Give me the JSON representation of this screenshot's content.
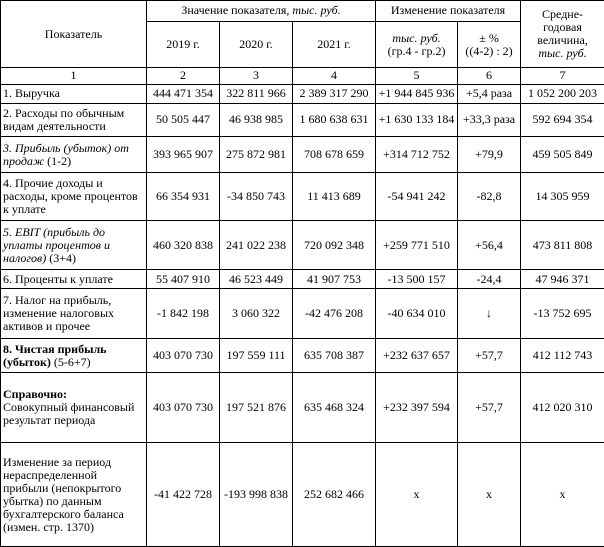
{
  "header": {
    "indicator": "Показатель",
    "values_group_prefix": "Значение показателя, ",
    "values_group_unit": "тыс. руб.",
    "change_group": "Изменение показателя",
    "avg_line1": "Средне-",
    "avg_line2": "годовая",
    "avg_line3": "величина,",
    "avg_unit": "тыс. руб.",
    "y2019": "2019 г.",
    "y2020": "2020 г.",
    "y2021": "2021 г.",
    "chg_abs_unit": "тыс. руб.",
    "chg_abs_formula": "(гр.4 - гр.2)",
    "chg_pct_unit": "± %",
    "chg_pct_formula": "((4-2) : 2)",
    "col_nums": [
      "1",
      "2",
      "3",
      "4",
      "5",
      "6",
      "7"
    ]
  },
  "rows": [
    {
      "label": "1. Выручка",
      "v2019": "444 471 354",
      "v2020": "322 811 966",
      "v2021": "2 389 317 290",
      "chg_abs": "+1 944 845 936",
      "chg_pct": "+5,4 раза",
      "avg": "1 052 200 203"
    },
    {
      "label": "2. Расходы по обычным видам деятельности",
      "v2019": "50 505 447",
      "v2020": "46 938 985",
      "v2021": "1 680 638 631",
      "chg_abs": "+1 630 133 184",
      "chg_pct": "+33,3 раза",
      "avg": "592 694 354"
    },
    {
      "label_italic": "3. Прибыль (убыток) от продаж",
      "label_suffix": " (1-2)",
      "v2019": "393 965 907",
      "v2020": "275 872 981",
      "v2021": "708 678 659",
      "chg_abs": "+314 712 752",
      "chg_pct": "+79,9",
      "avg": "459 505 849"
    },
    {
      "label": "4. Прочие доходы и расходы, кроме процентов к уплате",
      "v2019": "66 354 931",
      "v2020": "-34 850 743",
      "v2021": "11 413 689",
      "chg_abs": "-54 941 242",
      "chg_pct": "-82,8",
      "avg": "14 305 959"
    },
    {
      "label_italic": "5. EBIT (прибыль до уплаты процентов и налогов)",
      "label_suffix": " (3+4)",
      "v2019": "460 320 838",
      "v2020": "241 022 238",
      "v2021": "720 092 348",
      "chg_abs": "+259 771 510",
      "chg_pct": "+56,4",
      "avg": "473 811 808"
    },
    {
      "label": "6. Проценты к уплате",
      "v2019": "55 407 910",
      "v2020": "46 523 449",
      "v2021": "41 907 753",
      "chg_abs": "-13 500 157",
      "chg_pct": "-24,4",
      "avg": "47 946 371"
    },
    {
      "label": "7. Налог на прибыль, изменение налоговых активов и прочее",
      "v2019": "-1 842 198",
      "v2020": "3 060 322",
      "v2021": "-42 476 208",
      "chg_abs": "-40 634 010",
      "chg_pct": "↓",
      "avg": "-13 752 695"
    },
    {
      "label_bold": "8. Чистая прибыль (убыток)",
      "label_suffix": " (5-6+7)",
      "v2019": "403 070 730",
      "v2020": "197 559 111",
      "v2021": "635 708 387",
      "chg_abs": "+232 637 657",
      "chg_pct": "+57,7",
      "avg": "412 112 743"
    },
    {
      "label_bold": "Справочно:",
      "label_rest": "Совокупный финансовый результат периода",
      "v2019": "403 070 730",
      "v2020": "197 521 876",
      "v2021": "635 468 324",
      "chg_abs": "+232 397 594",
      "chg_pct": "+57,7",
      "avg": "412 020 310"
    },
    {
      "label": "Изменение за период нераспределенной прибыли (непокрытого убытка) по данным бухгалтерского баланса (измен. стр. 1370)",
      "v2019": "-41 422 728",
      "v2020": "-193 998 838",
      "v2021": "252 682 466",
      "chg_abs": "x",
      "chg_pct": "x",
      "avg": "x"
    }
  ]
}
